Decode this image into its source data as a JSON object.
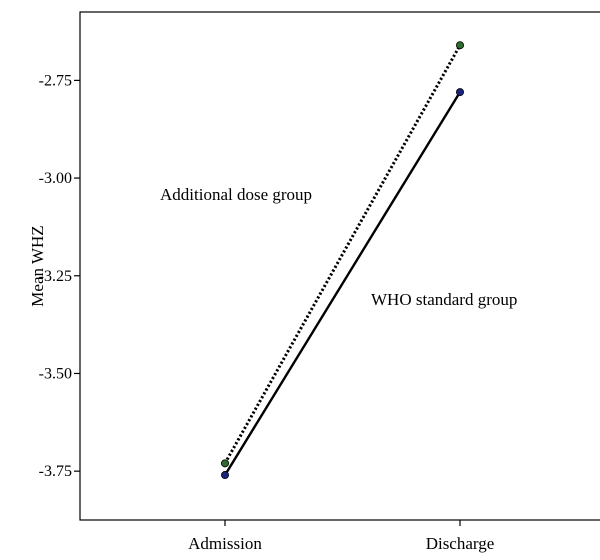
{
  "chart_data": {
    "type": "line",
    "title": "",
    "xlabel": "",
    "ylabel": "Mean WHZ",
    "categories": [
      "Admission",
      "Discharge"
    ],
    "ylim": [
      -3.875,
      -2.575
    ],
    "y_ticks": [
      "-2.75",
      "-3.00",
      "-3.25",
      "-3.50",
      "-3.75"
    ],
    "y_tick_values": [
      -2.75,
      -3.0,
      -3.25,
      -3.5,
      -3.75
    ],
    "grid": false,
    "series": [
      {
        "name": "Additional dose group",
        "values": [
          -3.73,
          -2.66
        ],
        "line_style": "dotted",
        "marker_color": "#2e6b2e"
      },
      {
        "name": "WHO standard group",
        "values": [
          -3.76,
          -2.78
        ],
        "line_style": "solid",
        "marker_color": "#1a237e"
      }
    ],
    "annotations": [
      {
        "text": "Additional dose group",
        "series": 0
      },
      {
        "text": "WHO standard group",
        "series": 1
      }
    ]
  }
}
